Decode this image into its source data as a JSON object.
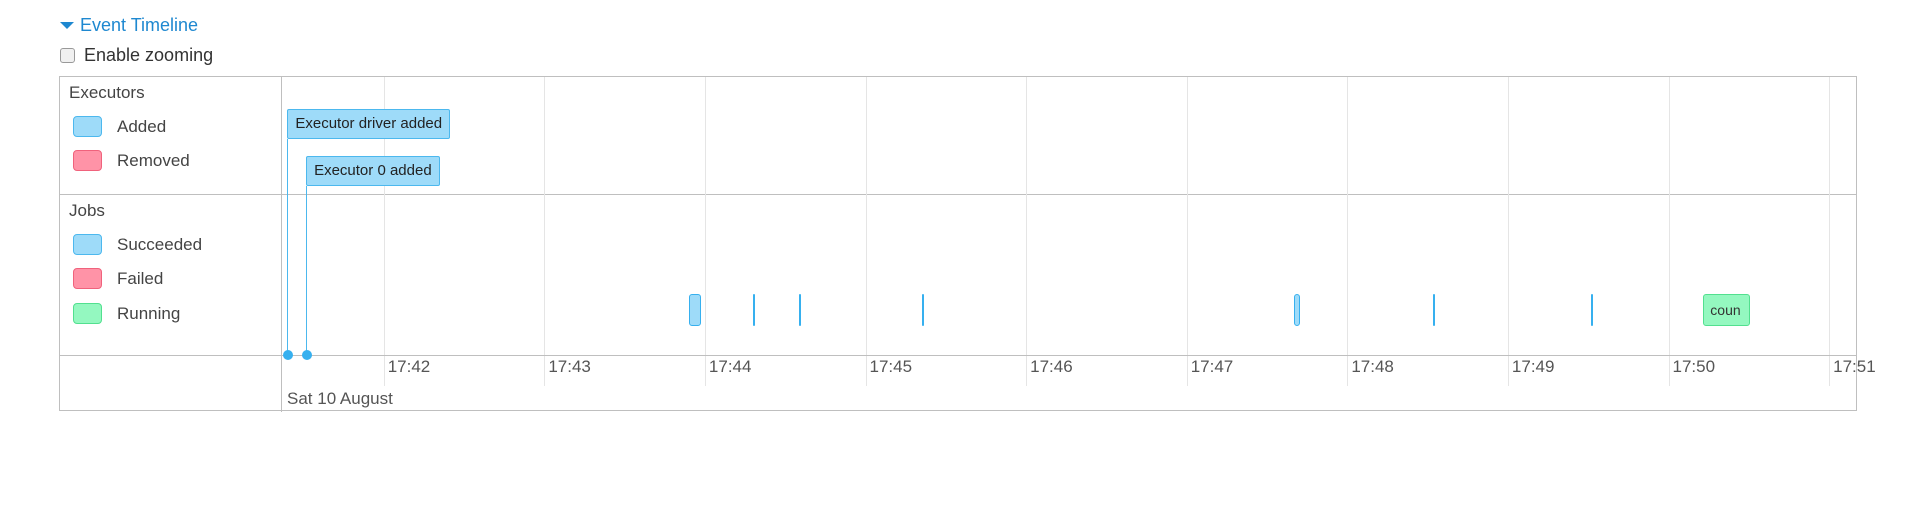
{
  "header": {
    "title": "Event Timeline",
    "zoom_label": "Enable zooming",
    "zoom_checked": false
  },
  "groups": {
    "executors": {
      "label": "Executors",
      "legend": [
        {
          "label": "Added",
          "color": "#9edbf9"
        },
        {
          "label": "Removed",
          "color": "#ff93a7"
        }
      ]
    },
    "jobs": {
      "label": "Jobs",
      "legend": [
        {
          "label": "Succeeded",
          "color": "#9edbf9"
        },
        {
          "label": "Failed",
          "color": "#ff93a7"
        },
        {
          "label": "Running",
          "color": "#94f8c0"
        }
      ]
    }
  },
  "axis": {
    "start": "17:41:22",
    "end": "17:51:11",
    "ticks": [
      "17:42",
      "17:43",
      "17:44",
      "17:45",
      "17:46",
      "17:47",
      "17:48",
      "17:49",
      "17:50",
      "17:51"
    ],
    "date_label": "Sat 10 August"
  },
  "executor_events": [
    {
      "label": "Executor driver added",
      "time": "17:41:24",
      "type": "added"
    },
    {
      "label": "Executor 0 added",
      "time": "17:41:31",
      "type": "added"
    }
  ],
  "jobs": [
    {
      "start": "17:43:54",
      "end": "17:43:58",
      "status": "succeeded",
      "label": ""
    },
    {
      "start": "17:44:18",
      "end": "17:44:18",
      "status": "succeeded",
      "label": ""
    },
    {
      "start": "17:44:35",
      "end": "17:44:35",
      "status": "succeeded",
      "label": ""
    },
    {
      "start": "17:45:21",
      "end": "17:45:21",
      "status": "succeeded",
      "label": ""
    },
    {
      "start": "17:47:40",
      "end": "17:47:42",
      "status": "succeeded",
      "label": ""
    },
    {
      "start": "17:48:32",
      "end": "17:48:32",
      "status": "succeeded",
      "label": ""
    },
    {
      "start": "17:49:31",
      "end": "17:49:31",
      "status": "succeeded",
      "label": ""
    },
    {
      "start": "17:50:13",
      "end": "17:50:30",
      "status": "running",
      "label": "coun"
    }
  ]
}
